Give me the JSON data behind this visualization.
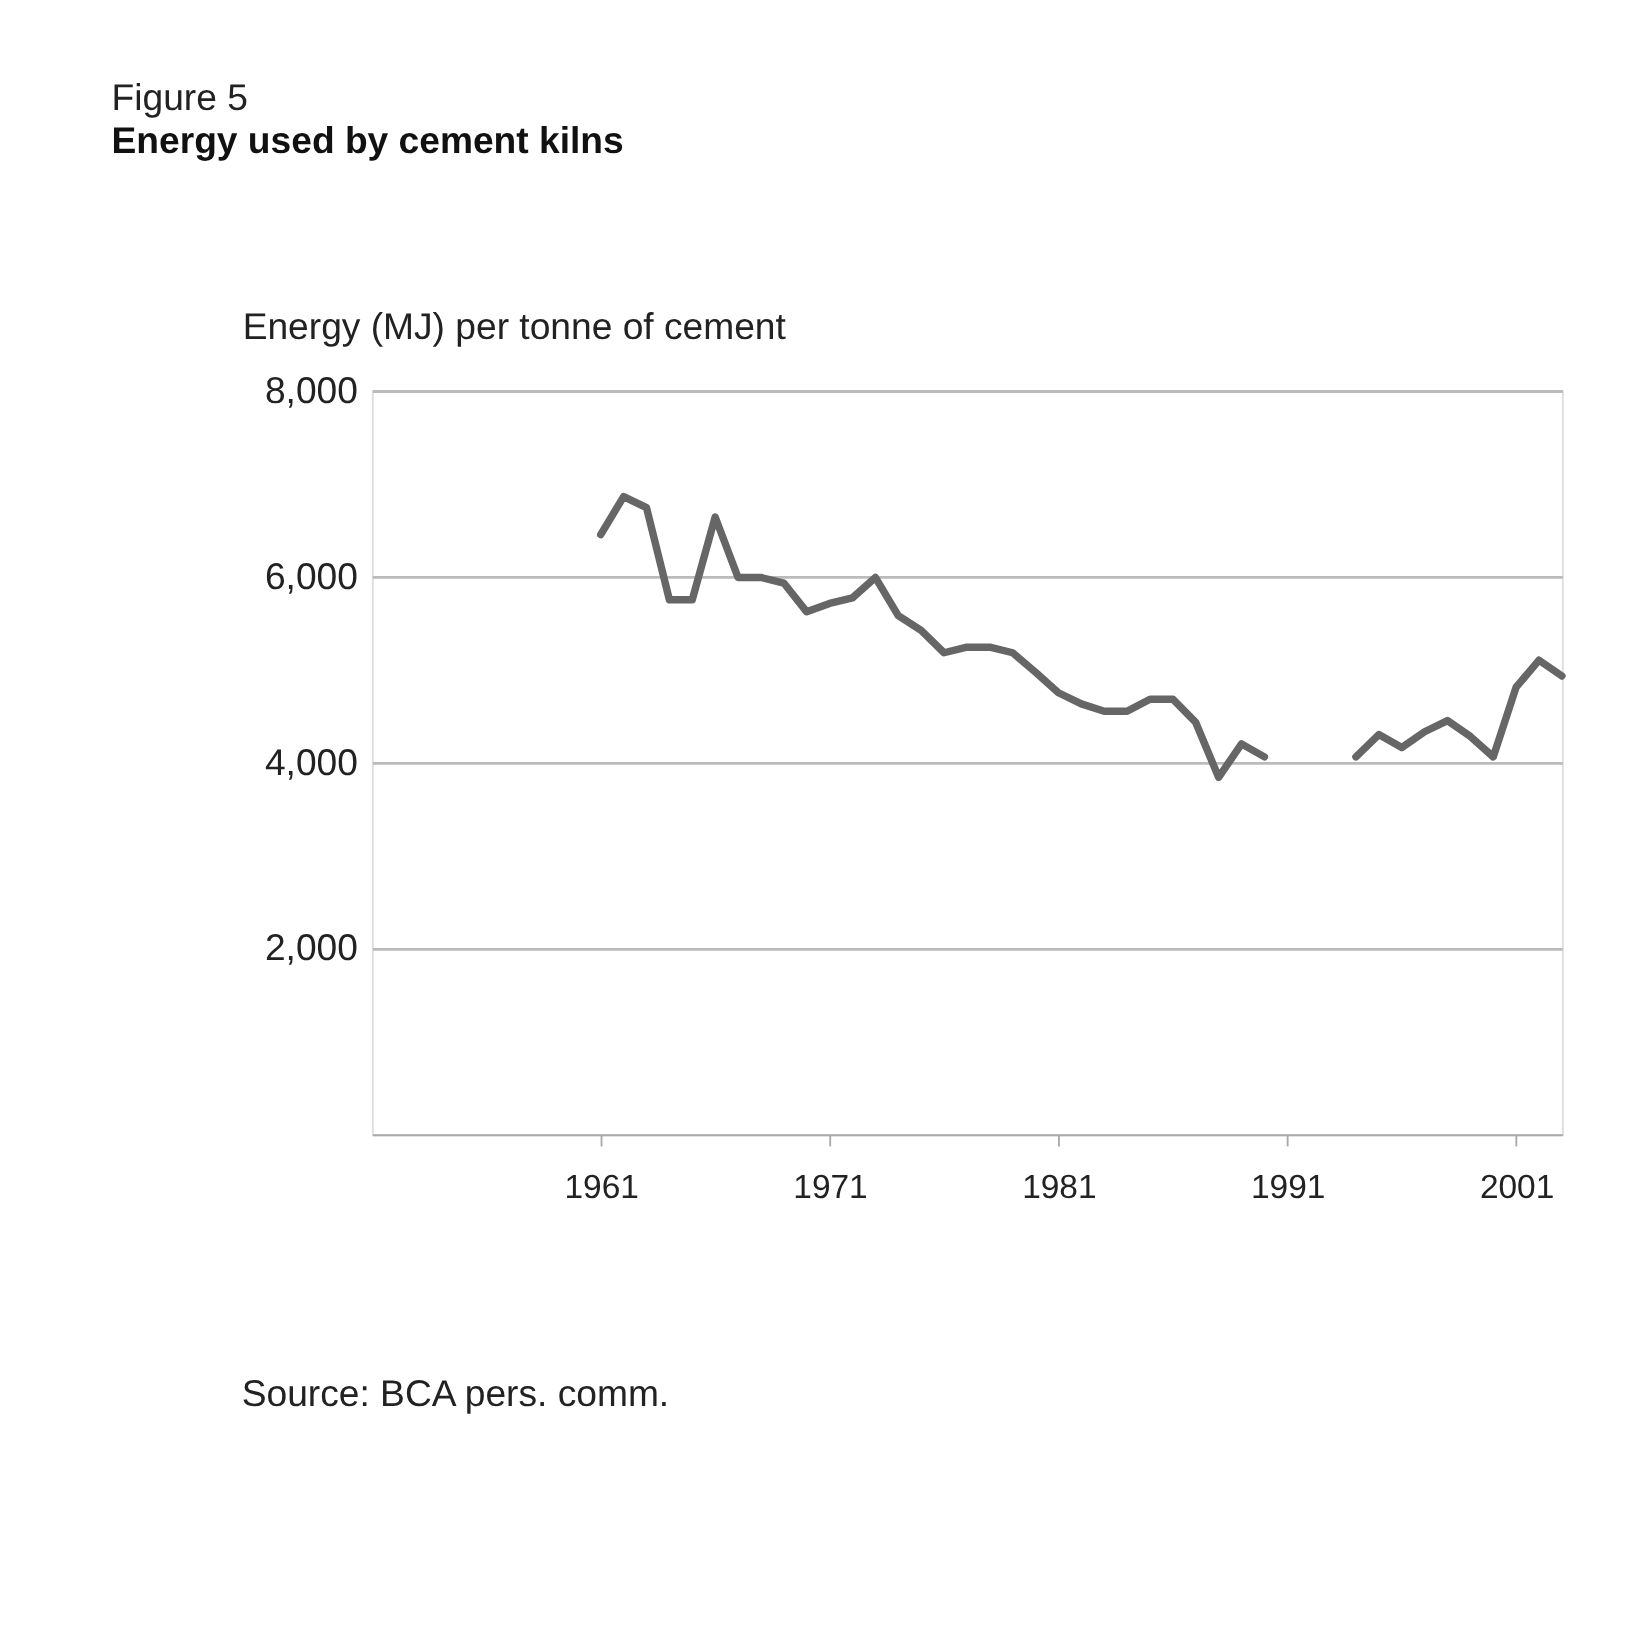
{
  "chart_data": {
    "type": "line",
    "title": "Figure 5",
    "subtitle": "Energy used by cement kilns",
    "ylabel": "Energy (MJ) per tonne of cement",
    "x": [
      1961,
      1962,
      1963,
      1964,
      1965,
      1966,
      1967,
      1968,
      1969,
      1970,
      1971,
      1972,
      1973,
      1974,
      1975,
      1976,
      1977,
      1978,
      1979,
      1980,
      1981,
      1982,
      1983,
      1984,
      1985,
      1986,
      1987,
      1988,
      1989,
      1990,
      1991,
      1992,
      1993,
      1994,
      1995,
      1996,
      1997,
      1998,
      1999,
      2000,
      2001,
      2002,
      2003
    ],
    "series": [
      {
        "color": "#666666",
        "values": [
          6450,
          6860,
          6740,
          5750,
          5750,
          6640,
          5990,
          5990,
          5930,
          5620,
          5710,
          5770,
          5990,
          5580,
          5420,
          5180,
          5240,
          5240,
          5180,
          4970,
          4750,
          4630,
          4550,
          4550,
          4680,
          4680,
          4430,
          3840,
          4200,
          4060,
          null,
          null,
          null,
          4060,
          4300,
          4160,
          4330,
          4450,
          4280,
          4060,
          4810,
          5100,
          4930
        ]
      }
    ],
    "xlim": [
      1951,
      2003
    ],
    "xticks": [
      1961,
      1971,
      1981,
      1991,
      2001
    ],
    "ylim": [
      0,
      8000
    ],
    "yticks": [
      {
        "value": 2000,
        "label": "2,000"
      },
      {
        "value": 4000,
        "label": "4,000"
      },
      {
        "value": 6000,
        "label": "6,000"
      },
      {
        "value": 8000,
        "label": "8,000"
      }
    ],
    "grid": "y",
    "marker": "none",
    "line_style": "solid",
    "legend": false,
    "annotations": [
      "Source: BCA pers. comm."
    ]
  }
}
